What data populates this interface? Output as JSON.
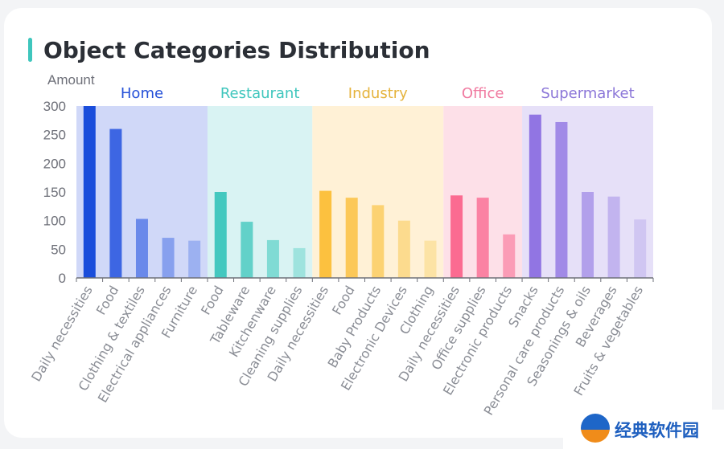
{
  "chart_data": {
    "type": "bar",
    "title": "Object Categories Distribution",
    "ylabel": "Amount",
    "xlabel": "",
    "ylim": [
      0,
      300
    ],
    "yticks": [
      0,
      50,
      100,
      150,
      200,
      250,
      300
    ],
    "groups": [
      {
        "name": "Home",
        "color": "#2450d8",
        "bg": "#d0d8f8",
        "categories": [
          "Daily necessities",
          "Food",
          "Clothing & textiles",
          "Electrical appliances",
          "Furniture"
        ],
        "values": [
          300,
          260,
          103,
          70,
          65
        ],
        "barColors": [
          "#1a4ddb",
          "#3d66e3",
          "#6a89ea",
          "#87a0ee",
          "#9cb1f1"
        ]
      },
      {
        "name": "Restaurant",
        "color": "#3fc6bd",
        "bg": "#d9f3f3",
        "categories": [
          "Food",
          "Tableware",
          "Kitchenware",
          "Cleaning supplies"
        ],
        "values": [
          150,
          98,
          66,
          52
        ],
        "barColors": [
          "#43c8bf",
          "#62d1c9",
          "#80dbd4",
          "#9ee3de"
        ]
      },
      {
        "name": "Industry",
        "color": "#e5b33c",
        "bg": "#fff1d6",
        "categories": [
          "Daily necessities",
          "Food",
          "Baby Products",
          "Electronic Devices",
          "Clothing"
        ],
        "values": [
          152,
          140,
          127,
          100,
          65
        ],
        "barColors": [
          "#fcc13f",
          "#fcc858",
          "#fcd272",
          "#fcdb8e",
          "#fce3a5"
        ]
      },
      {
        "name": "Office",
        "color": "#f07aa0",
        "bg": "#fde0e8",
        "categories": [
          "Daily necessities",
          "Office supplies",
          "Electronic products"
        ],
        "values": [
          144,
          140,
          76
        ],
        "barColors": [
          "#fb6b91",
          "#fb82a3",
          "#fb9cb6"
        ]
      },
      {
        "name": "Supermarket",
        "color": "#8b76d8",
        "bg": "#e6e0f8",
        "categories": [
          "Snacks",
          "Personal care products",
          "Seasonings & oils",
          "Beverages",
          "Fruits & vegetables"
        ],
        "values": [
          285,
          272,
          150,
          142,
          102
        ],
        "barColors": [
          "#9175e3",
          "#a18ae7",
          "#b2a0eb",
          "#c2b4ef",
          "#d0c6f2"
        ]
      }
    ]
  },
  "watermark": {
    "text": "经典软件园"
  }
}
